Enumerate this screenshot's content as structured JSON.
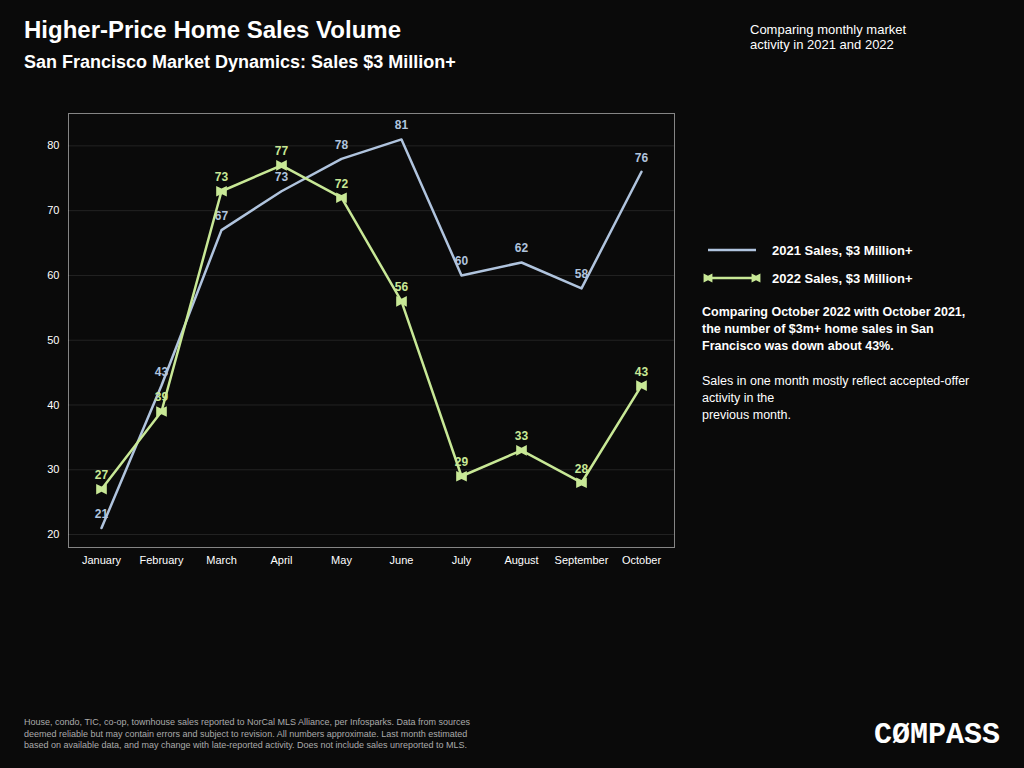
{
  "chart_data": {
    "type": "line",
    "title": "Higher-Price Home Sales Volume",
    "subtitle": "San Francisco Market Dynamics: Sales $3 Million+",
    "categories": [
      "January",
      "February",
      "March",
      "April",
      "May",
      "June",
      "July",
      "August",
      "September",
      "October"
    ],
    "series": [
      {
        "name": "2021 Sales, $3 Million+",
        "color": "#b0c4de",
        "marker": "none",
        "values": [
          21,
          43,
          67,
          73,
          78,
          81,
          60,
          62,
          58,
          76
        ]
      },
      {
        "name": "2022 Sales, $3 Million+",
        "color": "#c8e896",
        "marker": "bowtie",
        "values": [
          27,
          39,
          73,
          77,
          72,
          56,
          29,
          33,
          28,
          43
        ]
      }
    ],
    "ylim": [
      18,
      85
    ],
    "yticks": [
      20,
      30,
      40,
      50,
      60,
      70,
      80
    ],
    "grid": true,
    "data_labels": true,
    "legend": "right",
    "annotations": [
      "Comparing monthly market\nactivity in 2021 and 2022",
      "Comparing October 2022 with October 2021,\nthe number of $3m+ home sales in San\nFrancisco was down about 43%.",
      "Sales in one month mostly reflect accepted-offer\nactivity in the\nprevious month.",
      "House, condo, TIC, co-op, townhouse sales reported to NorCal MLS Alliance, per Infosparks. Data from sources\ndeemed reliable but may contain errors and subject to revision. All numbers approximate. Last month estimated\nbased on available data, and may change with late-reported activity. Does not include sales unreported to MLS.",
      "CØMPASS"
    ]
  }
}
